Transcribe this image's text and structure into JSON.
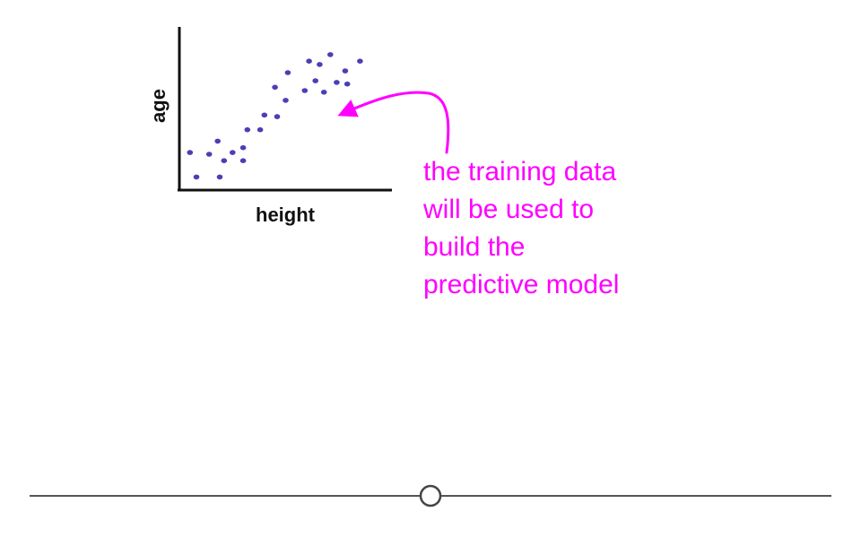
{
  "colors": {
    "point": "#4b3fb4",
    "axis": "#111111",
    "annotation": "#ff00ff",
    "timeline": "#555555"
  },
  "chart_data": {
    "type": "scatter",
    "title": "",
    "xlabel": "height",
    "ylabel": "age",
    "grid": false,
    "legend": "none",
    "xlim": [
      0,
      100
    ],
    "ylim": [
      0,
      100
    ],
    "series": [
      {
        "points": [
          [
            5,
            23
          ],
          [
            8,
            8
          ],
          [
            14,
            22
          ],
          [
            18,
            30
          ],
          [
            19,
            8
          ],
          [
            21,
            18
          ],
          [
            25,
            23
          ],
          [
            30,
            26
          ],
          [
            30,
            18
          ],
          [
            32,
            37
          ],
          [
            38,
            37
          ],
          [
            40,
            46
          ],
          [
            45,
            63
          ],
          [
            46,
            45
          ],
          [
            50,
            55
          ],
          [
            51,
            72
          ],
          [
            59,
            61
          ],
          [
            61,
            79
          ],
          [
            64,
            67
          ],
          [
            66,
            77
          ],
          [
            68,
            60
          ],
          [
            71,
            83
          ],
          [
            74,
            66
          ],
          [
            78,
            73
          ],
          [
            79,
            65
          ],
          [
            85,
            79
          ]
        ]
      }
    ]
  },
  "annotation": {
    "lines": [
      "the training data",
      "will be used to",
      "build the",
      "predictive model"
    ]
  },
  "timeline": {
    "scrubber_label": ""
  }
}
